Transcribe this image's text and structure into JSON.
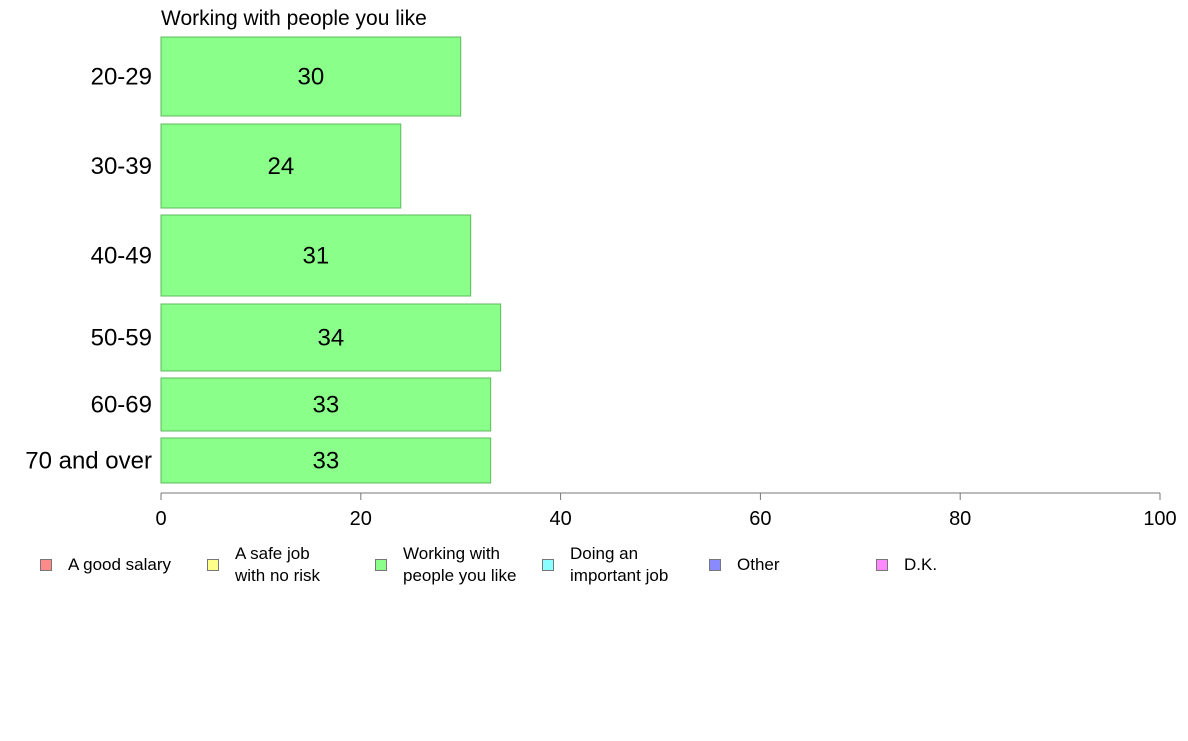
{
  "chart_data": {
    "type": "bar",
    "orientation": "horizontal",
    "title": "Working with people you like",
    "categories": [
      "20-29",
      "30-39",
      "40-49",
      "50-59",
      "60-69",
      "70 and over"
    ],
    "values": [
      30,
      24,
      31,
      34,
      33,
      33
    ],
    "value_labels": [
      "30",
      "24",
      "31",
      "34",
      "33",
      "33"
    ],
    "bar_color": "#8aff8a",
    "bar_stroke": "#5cba5c",
    "xlim": [
      0,
      100
    ],
    "xticks": [
      0,
      20,
      40,
      60,
      80,
      100
    ],
    "xtick_labels": [
      "0",
      "20",
      "40",
      "60",
      "80",
      "100"
    ],
    "xlabel": "",
    "ylabel": "",
    "grid": false,
    "legend_position": "bottom",
    "legend": [
      {
        "label": "A good salary",
        "color": "#ff8a8a"
      },
      {
        "label": "A safe job\nwith no risk",
        "color": "#ffff8a"
      },
      {
        "label": "Working with\npeople you like",
        "color": "#8aff8a"
      },
      {
        "label": "Doing an\nimportant job",
        "color": "#8affff"
      },
      {
        "label": "Other",
        "color": "#8a8aff"
      },
      {
        "label": "D.K.",
        "color": "#ff8aff"
      }
    ]
  }
}
